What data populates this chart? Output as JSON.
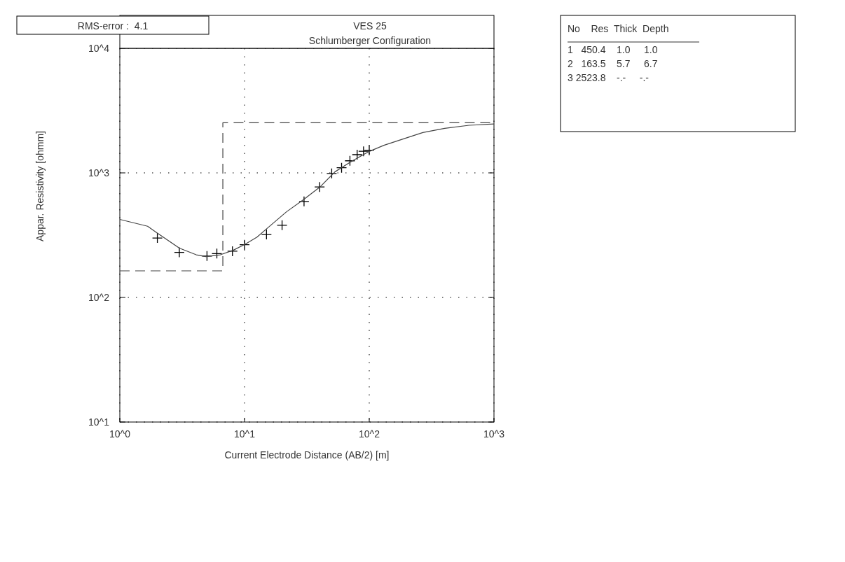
{
  "chart_data": [
    {
      "type": "scatter",
      "title": "VES 25",
      "subtitle": "Schlumberger Configuration",
      "xlabel": "Current Electrode Distance (AB/2) [m]",
      "ylabel": "Appar. Resistivity [ohmm]",
      "annotations": [
        "RMS-error :  4.1"
      ],
      "log": "xy",
      "grid": true,
      "xlim": [
        1,
        1000
      ],
      "ylim": [
        10,
        10000
      ],
      "xticks": [
        {
          "value": 1,
          "label": "10^0"
        },
        {
          "value": 10,
          "label": "10^1"
        },
        {
          "value": 100,
          "label": "10^2"
        },
        {
          "value": 1000,
          "label": "10^3"
        }
      ],
      "yticks": [
        {
          "value": 10,
          "label": "10^1"
        },
        {
          "value": 100,
          "label": "10^2"
        },
        {
          "value": 1000,
          "label": "10^3"
        },
        {
          "value": 10000,
          "label": "10^4"
        }
      ],
      "series": [
        {
          "type": "scatter",
          "marker": "cross",
          "color": "#000000",
          "x": [
            2,
            3,
            5,
            6,
            8,
            10,
            15,
            20,
            30,
            40,
            50,
            60,
            70,
            80,
            90,
            100
          ],
          "values": [
            300,
            230,
            215,
            225,
            235,
            265,
            320,
            380,
            590,
            770,
            990,
            1100,
            1250,
            1400,
            1490,
            1520
          ]
        },
        {
          "type": "line",
          "marker": "none",
          "line_style": "solid",
          "color": "#444444",
          "x": [
            1,
            1.67,
            1.95,
            3,
            4.1,
            4.9,
            6.4,
            8.1,
            10.1,
            12.6,
            15.1,
            21.7,
            29.7,
            40.7,
            53,
            70,
            100,
            131,
            196,
            269,
            403,
            631,
            1000
          ],
          "values": [
            423,
            373,
            334,
            249,
            220,
            213,
            220,
            239,
            267,
            305,
            357,
            487,
            610,
            778,
            1018,
            1216,
            1487,
            1664,
            1901,
            2109,
            2275,
            2410,
            2470
          ]
        },
        {
          "type": "line",
          "marker": "none",
          "line_style": "dashed",
          "color": "#444444",
          "x": [
            1,
            6.7,
            6.7,
            1000
          ],
          "values": [
            163.5,
            163.5,
            2523.8,
            2523.8
          ]
        }
      ]
    },
    {
      "type": "other",
      "annotations": [
        "No    Res  Thick  Depth",
        "1   450.4    1.0     1.0",
        "2   163.5    5.7     6.7",
        "3 2523.8    -.-     -.-"
      ]
    }
  ]
}
